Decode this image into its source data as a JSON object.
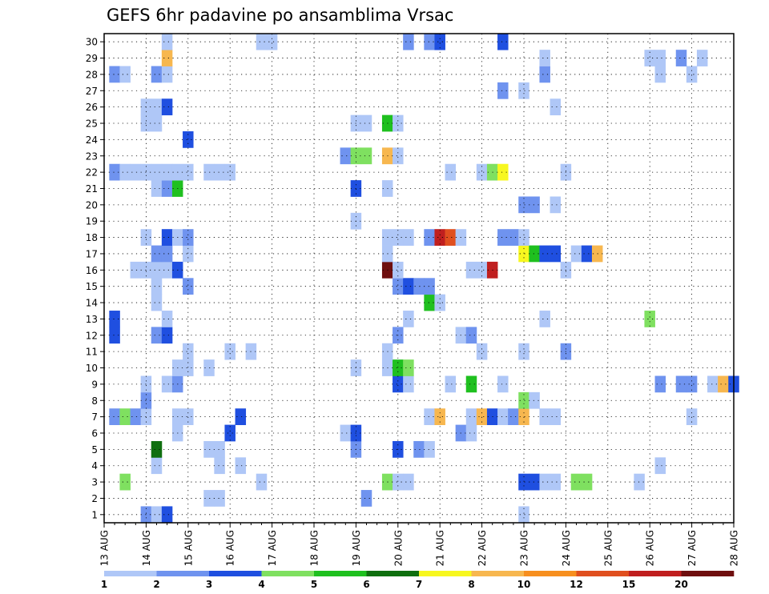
{
  "chart_data": {
    "type": "heatmap",
    "title": "GEFS 6hr padavine po ansamblima Vrsac",
    "xlabel": "",
    "ylabel": "",
    "x_unit": "6-hour steps from 13 AUG 00Z",
    "x_ticks": [
      "13 AUG",
      "14 AUG",
      "15 AUG",
      "16 AUG",
      "17 AUG",
      "18 AUG",
      "19 AUG",
      "20 AUG",
      "21 AUG",
      "22 AUG",
      "23 AUG",
      "24 AUG",
      "25 AUG",
      "26 AUG",
      "27 AUG",
      "28 AUG"
    ],
    "y_ticks": [
      "1",
      "2",
      "3",
      "4",
      "5",
      "6",
      "7",
      "8",
      "9",
      "10",
      "11",
      "12",
      "13",
      "14",
      "15",
      "16",
      "17",
      "18",
      "19",
      "20",
      "21",
      "22",
      "23",
      "24",
      "25",
      "26",
      "27",
      "28",
      "29",
      "30"
    ],
    "xlim": [
      0,
      60
    ],
    "ylim": [
      0.5,
      30.5
    ],
    "grid": true,
    "legend": "colorbar-bottom",
    "levels": [
      1,
      2,
      3,
      4,
      5,
      6,
      7,
      8,
      10,
      12,
      15,
      20
    ],
    "colors": [
      "#afc7f7",
      "#6f93ef",
      "#1f4fe0",
      "#7fe060",
      "#1fc01f",
      "#0f6f0f",
      "#f7f71f",
      "#f7b74f",
      "#f78f1f",
      "#e04f1f",
      "#c01f1f",
      "#6f0f0f"
    ],
    "cells": [
      {
        "x": 4,
        "y": 1,
        "v": 2
      },
      {
        "x": 5,
        "y": 1,
        "v": 1
      },
      {
        "x": 6,
        "y": 1,
        "v": 3
      },
      {
        "x": 40,
        "y": 1,
        "v": 1
      },
      {
        "x": 10,
        "y": 2,
        "v": 1
      },
      {
        "x": 11,
        "y": 2,
        "v": 1
      },
      {
        "x": 25,
        "y": 2,
        "v": 2
      },
      {
        "x": 2,
        "y": 3,
        "v": 4
      },
      {
        "x": 15,
        "y": 3,
        "v": 1
      },
      {
        "x": 27,
        "y": 3,
        "v": 4
      },
      {
        "x": 28,
        "y": 3,
        "v": 1
      },
      {
        "x": 29,
        "y": 3,
        "v": 1
      },
      {
        "x": 40,
        "y": 3,
        "v": 3
      },
      {
        "x": 41,
        "y": 3,
        "v": 3
      },
      {
        "x": 42,
        "y": 3,
        "v": 1
      },
      {
        "x": 43,
        "y": 3,
        "v": 1
      },
      {
        "x": 45,
        "y": 3,
        "v": 4
      },
      {
        "x": 46,
        "y": 3,
        "v": 4
      },
      {
        "x": 51,
        "y": 3,
        "v": 1
      },
      {
        "x": 5,
        "y": 4,
        "v": 1
      },
      {
        "x": 11,
        "y": 4,
        "v": 1
      },
      {
        "x": 13,
        "y": 4,
        "v": 1
      },
      {
        "x": 53,
        "y": 4,
        "v": 1
      },
      {
        "x": 5,
        "y": 5,
        "v": 6
      },
      {
        "x": 10,
        "y": 5,
        "v": 1
      },
      {
        "x": 11,
        "y": 5,
        "v": 1
      },
      {
        "x": 24,
        "y": 5,
        "v": 2
      },
      {
        "x": 28,
        "y": 5,
        "v": 3
      },
      {
        "x": 30,
        "y": 5,
        "v": 2
      },
      {
        "x": 31,
        "y": 5,
        "v": 1
      },
      {
        "x": 7,
        "y": 6,
        "v": 1
      },
      {
        "x": 12,
        "y": 6,
        "v": 3
      },
      {
        "x": 23,
        "y": 6,
        "v": 1
      },
      {
        "x": 24,
        "y": 6,
        "v": 3
      },
      {
        "x": 34,
        "y": 6,
        "v": 2
      },
      {
        "x": 35,
        "y": 6,
        "v": 1
      },
      {
        "x": 1,
        "y": 7,
        "v": 2
      },
      {
        "x": 2,
        "y": 7,
        "v": 4
      },
      {
        "x": 3,
        "y": 7,
        "v": 2
      },
      {
        "x": 4,
        "y": 7,
        "v": 1
      },
      {
        "x": 7,
        "y": 7,
        "v": 1
      },
      {
        "x": 8,
        "y": 7,
        "v": 1
      },
      {
        "x": 13,
        "y": 7,
        "v": 3
      },
      {
        "x": 31,
        "y": 7,
        "v": 1
      },
      {
        "x": 32,
        "y": 7,
        "v": 8
      },
      {
        "x": 35,
        "y": 7,
        "v": 1
      },
      {
        "x": 36,
        "y": 7,
        "v": 8
      },
      {
        "x": 37,
        "y": 7,
        "v": 3
      },
      {
        "x": 38,
        "y": 7,
        "v": 1
      },
      {
        "x": 39,
        "y": 7,
        "v": 2
      },
      {
        "x": 40,
        "y": 7,
        "v": 8
      },
      {
        "x": 42,
        "y": 7,
        "v": 1
      },
      {
        "x": 43,
        "y": 7,
        "v": 1
      },
      {
        "x": 56,
        "y": 7,
        "v": 1
      },
      {
        "x": 4,
        "y": 8,
        "v": 2
      },
      {
        "x": 40,
        "y": 8,
        "v": 4
      },
      {
        "x": 41,
        "y": 8,
        "v": 1
      },
      {
        "x": 4,
        "y": 9,
        "v": 1
      },
      {
        "x": 6,
        "y": 9,
        "v": 1
      },
      {
        "x": 7,
        "y": 9,
        "v": 2
      },
      {
        "x": 28,
        "y": 9,
        "v": 3
      },
      {
        "x": 29,
        "y": 9,
        "v": 1
      },
      {
        "x": 33,
        "y": 9,
        "v": 1
      },
      {
        "x": 35,
        "y": 9,
        "v": 5
      },
      {
        "x": 38,
        "y": 9,
        "v": 1
      },
      {
        "x": 53,
        "y": 9,
        "v": 2
      },
      {
        "x": 55,
        "y": 9,
        "v": 2
      },
      {
        "x": 56,
        "y": 9,
        "v": 2
      },
      {
        "x": 58,
        "y": 9,
        "v": 1
      },
      {
        "x": 59,
        "y": 9,
        "v": 8
      },
      {
        "x": 60,
        "y": 9,
        "v": 3
      },
      {
        "x": 7,
        "y": 10,
        "v": 1
      },
      {
        "x": 8,
        "y": 10,
        "v": 1
      },
      {
        "x": 10,
        "y": 10,
        "v": 1
      },
      {
        "x": 24,
        "y": 10,
        "v": 1
      },
      {
        "x": 27,
        "y": 10,
        "v": 1
      },
      {
        "x": 28,
        "y": 10,
        "v": 5
      },
      {
        "x": 29,
        "y": 10,
        "v": 4
      },
      {
        "x": 8,
        "y": 11,
        "v": 1
      },
      {
        "x": 12,
        "y": 11,
        "v": 1
      },
      {
        "x": 14,
        "y": 11,
        "v": 1
      },
      {
        "x": 27,
        "y": 11,
        "v": 1
      },
      {
        "x": 36,
        "y": 11,
        "v": 1
      },
      {
        "x": 40,
        "y": 11,
        "v": 1
      },
      {
        "x": 44,
        "y": 11,
        "v": 2
      },
      {
        "x": 1,
        "y": 12,
        "v": 3
      },
      {
        "x": 5,
        "y": 12,
        "v": 2
      },
      {
        "x": 6,
        "y": 12,
        "v": 3
      },
      {
        "x": 28,
        "y": 12,
        "v": 2
      },
      {
        "x": 34,
        "y": 12,
        "v": 1
      },
      {
        "x": 35,
        "y": 12,
        "v": 2
      },
      {
        "x": 1,
        "y": 13,
        "v": 3
      },
      {
        "x": 6,
        "y": 13,
        "v": 1
      },
      {
        "x": 29,
        "y": 13,
        "v": 1
      },
      {
        "x": 42,
        "y": 13,
        "v": 1
      },
      {
        "x": 52,
        "y": 13,
        "v": 4
      },
      {
        "x": 5,
        "y": 14,
        "v": 1
      },
      {
        "x": 31,
        "y": 14,
        "v": 5
      },
      {
        "x": 32,
        "y": 14,
        "v": 1
      },
      {
        "x": 5,
        "y": 15,
        "v": 1
      },
      {
        "x": 8,
        "y": 15,
        "v": 2
      },
      {
        "x": 28,
        "y": 15,
        "v": 2
      },
      {
        "x": 29,
        "y": 15,
        "v": 3
      },
      {
        "x": 30,
        "y": 15,
        "v": 2
      },
      {
        "x": 31,
        "y": 15,
        "v": 2
      },
      {
        "x": 3,
        "y": 16,
        "v": 1
      },
      {
        "x": 4,
        "y": 16,
        "v": 1
      },
      {
        "x": 5,
        "y": 16,
        "v": 1
      },
      {
        "x": 6,
        "y": 16,
        "v": 1
      },
      {
        "x": 7,
        "y": 16,
        "v": 3
      },
      {
        "x": 27,
        "y": 16,
        "v": 20
      },
      {
        "x": 28,
        "y": 16,
        "v": 1
      },
      {
        "x": 35,
        "y": 16,
        "v": 1
      },
      {
        "x": 36,
        "y": 16,
        "v": 1
      },
      {
        "x": 37,
        "y": 16,
        "v": 15
      },
      {
        "x": 44,
        "y": 16,
        "v": 1
      },
      {
        "x": 5,
        "y": 17,
        "v": 2
      },
      {
        "x": 6,
        "y": 17,
        "v": 2
      },
      {
        "x": 8,
        "y": 17,
        "v": 1
      },
      {
        "x": 27,
        "y": 17,
        "v": 1
      },
      {
        "x": 40,
        "y": 17,
        "v": 7
      },
      {
        "x": 41,
        "y": 17,
        "v": 5
      },
      {
        "x": 42,
        "y": 17,
        "v": 3
      },
      {
        "x": 43,
        "y": 17,
        "v": 3
      },
      {
        "x": 45,
        "y": 17,
        "v": 1
      },
      {
        "x": 46,
        "y": 17,
        "v": 3
      },
      {
        "x": 47,
        "y": 17,
        "v": 8
      },
      {
        "x": 4,
        "y": 18,
        "v": 1
      },
      {
        "x": 6,
        "y": 18,
        "v": 3
      },
      {
        "x": 7,
        "y": 18,
        "v": 1
      },
      {
        "x": 8,
        "y": 18,
        "v": 2
      },
      {
        "x": 27,
        "y": 18,
        "v": 1
      },
      {
        "x": 28,
        "y": 18,
        "v": 1
      },
      {
        "x": 29,
        "y": 18,
        "v": 1
      },
      {
        "x": 31,
        "y": 18,
        "v": 2
      },
      {
        "x": 32,
        "y": 18,
        "v": 15
      },
      {
        "x": 33,
        "y": 18,
        "v": 12
      },
      {
        "x": 34,
        "y": 18,
        "v": 1
      },
      {
        "x": 38,
        "y": 18,
        "v": 2
      },
      {
        "x": 39,
        "y": 18,
        "v": 2
      },
      {
        "x": 40,
        "y": 18,
        "v": 1
      },
      {
        "x": 24,
        "y": 19,
        "v": 1
      },
      {
        "x": 40,
        "y": 20,
        "v": 2
      },
      {
        "x": 41,
        "y": 20,
        "v": 2
      },
      {
        "x": 43,
        "y": 20,
        "v": 1
      },
      {
        "x": 5,
        "y": 21,
        "v": 1
      },
      {
        "x": 6,
        "y": 21,
        "v": 2
      },
      {
        "x": 7,
        "y": 21,
        "v": 5
      },
      {
        "x": 24,
        "y": 21,
        "v": 3
      },
      {
        "x": 27,
        "y": 21,
        "v": 1
      },
      {
        "x": 1,
        "y": 22,
        "v": 2
      },
      {
        "x": 2,
        "y": 22,
        "v": 1
      },
      {
        "x": 3,
        "y": 22,
        "v": 1
      },
      {
        "x": 4,
        "y": 22,
        "v": 1
      },
      {
        "x": 5,
        "y": 22,
        "v": 1
      },
      {
        "x": 6,
        "y": 22,
        "v": 1
      },
      {
        "x": 7,
        "y": 22,
        "v": 1
      },
      {
        "x": 8,
        "y": 22,
        "v": 1
      },
      {
        "x": 10,
        "y": 22,
        "v": 1
      },
      {
        "x": 11,
        "y": 22,
        "v": 1
      },
      {
        "x": 12,
        "y": 22,
        "v": 1
      },
      {
        "x": 33,
        "y": 22,
        "v": 1
      },
      {
        "x": 36,
        "y": 22,
        "v": 1
      },
      {
        "x": 37,
        "y": 22,
        "v": 4
      },
      {
        "x": 38,
        "y": 22,
        "v": 7
      },
      {
        "x": 44,
        "y": 22,
        "v": 1
      },
      {
        "x": 23,
        "y": 23,
        "v": 2
      },
      {
        "x": 24,
        "y": 23,
        "v": 4
      },
      {
        "x": 25,
        "y": 23,
        "v": 4
      },
      {
        "x": 27,
        "y": 23,
        "v": 8
      },
      {
        "x": 28,
        "y": 23,
        "v": 1
      },
      {
        "x": 8,
        "y": 24,
        "v": 3
      },
      {
        "x": 4,
        "y": 25,
        "v": 1
      },
      {
        "x": 5,
        "y": 25,
        "v": 1
      },
      {
        "x": 24,
        "y": 25,
        "v": 1
      },
      {
        "x": 25,
        "y": 25,
        "v": 1
      },
      {
        "x": 27,
        "y": 25,
        "v": 5
      },
      {
        "x": 28,
        "y": 25,
        "v": 1
      },
      {
        "x": 4,
        "y": 26,
        "v": 1
      },
      {
        "x": 5,
        "y": 26,
        "v": 1
      },
      {
        "x": 6,
        "y": 26,
        "v": 3
      },
      {
        "x": 43,
        "y": 26,
        "v": 1
      },
      {
        "x": 38,
        "y": 27,
        "v": 2
      },
      {
        "x": 40,
        "y": 27,
        "v": 1
      },
      {
        "x": 1,
        "y": 28,
        "v": 2
      },
      {
        "x": 2,
        "y": 28,
        "v": 1
      },
      {
        "x": 5,
        "y": 28,
        "v": 2
      },
      {
        "x": 6,
        "y": 28,
        "v": 1
      },
      {
        "x": 42,
        "y": 28,
        "v": 2
      },
      {
        "x": 53,
        "y": 28,
        "v": 1
      },
      {
        "x": 56,
        "y": 28,
        "v": 1
      },
      {
        "x": 6,
        "y": 29,
        "v": 8
      },
      {
        "x": 42,
        "y": 29,
        "v": 1
      },
      {
        "x": 52,
        "y": 29,
        "v": 1
      },
      {
        "x": 53,
        "y": 29,
        "v": 1
      },
      {
        "x": 55,
        "y": 29,
        "v": 2
      },
      {
        "x": 57,
        "y": 29,
        "v": 1
      },
      {
        "x": 6,
        "y": 30,
        "v": 1
      },
      {
        "x": 15,
        "y": 30,
        "v": 1
      },
      {
        "x": 16,
        "y": 30,
        "v": 1
      },
      {
        "x": 29,
        "y": 30,
        "v": 2
      },
      {
        "x": 31,
        "y": 30,
        "v": 2
      },
      {
        "x": 32,
        "y": 30,
        "v": 3
      },
      {
        "x": 38,
        "y": 30,
        "v": 3
      }
    ]
  }
}
